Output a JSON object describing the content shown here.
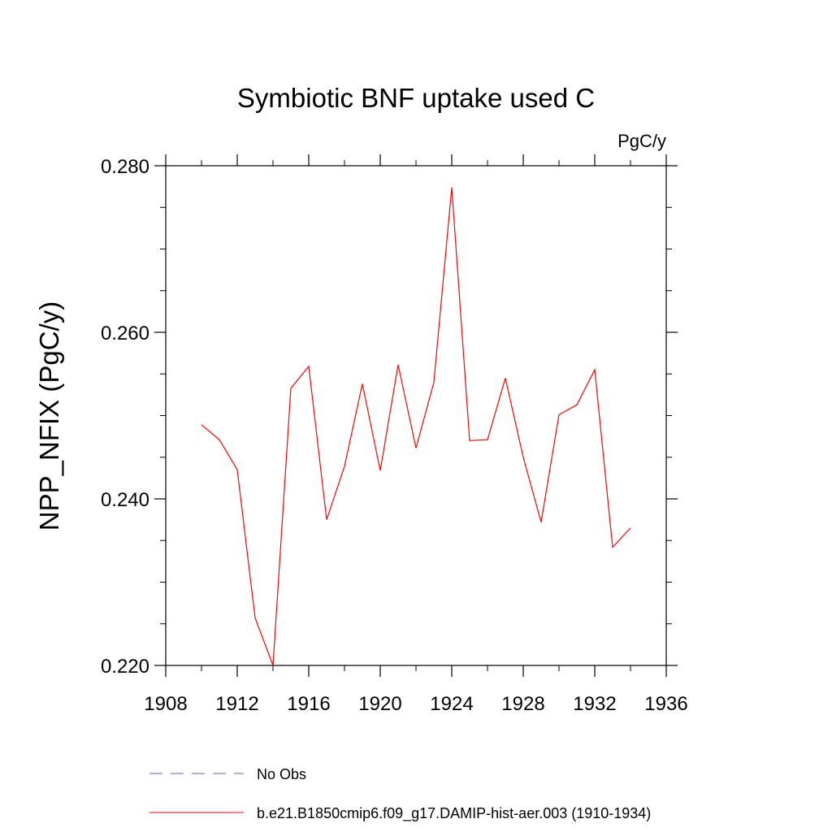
{
  "chart_data": {
    "type": "line",
    "title": "Symbiotic BNF uptake used C",
    "units_label": "PgC/y",
    "ylabel": "NPP_NFIX  (PgC/y)",
    "xlabel": "",
    "xlim": [
      1908,
      1936
    ],
    "ylim": [
      0.22,
      0.28
    ],
    "x_ticks": [
      1908,
      1912,
      1916,
      1920,
      1924,
      1928,
      1932,
      1936
    ],
    "x_tick_labels": [
      "1908",
      "1912",
      "1916",
      "1920",
      "1924",
      "1928",
      "1932",
      "1936"
    ],
    "y_ticks": [
      0.22,
      0.24,
      0.26,
      0.28
    ],
    "y_tick_labels": [
      "0.220",
      "0.240",
      "0.260",
      "0.280"
    ],
    "grid": false,
    "legend_position": "bottom",
    "series": [
      {
        "name": "b.e21.B1850cmip6.f09_g17.DAMIP-hist-aer.003 (1910-1934)",
        "color": "#ff0000",
        "style": "solid",
        "x": [
          1910,
          1911,
          1912,
          1913,
          1914,
          1915,
          1916,
          1917,
          1918,
          1919,
          1920,
          1921,
          1922,
          1923,
          1924,
          1925,
          1926,
          1927,
          1928,
          1929,
          1930,
          1931,
          1932,
          1933,
          1934
        ],
        "y": [
          0.2489,
          0.2471,
          0.2435,
          0.2257,
          0.22,
          0.2533,
          0.2559,
          0.2375,
          0.2439,
          0.2538,
          0.2434,
          0.2561,
          0.2461,
          0.254,
          0.2774,
          0.247,
          0.2471,
          0.2545,
          0.245,
          0.2372,
          0.2501,
          0.2513,
          0.2555,
          0.2342,
          0.2365
        ]
      }
    ],
    "legend": [
      {
        "label": "No Obs",
        "color": "#6a5acd",
        "style": "dashed"
      },
      {
        "label": "b.e21.B1850cmip6.f09_g17.DAMIP-hist-aer.003 (1910-1934)",
        "color": "#ff0000",
        "style": "solid"
      }
    ]
  }
}
